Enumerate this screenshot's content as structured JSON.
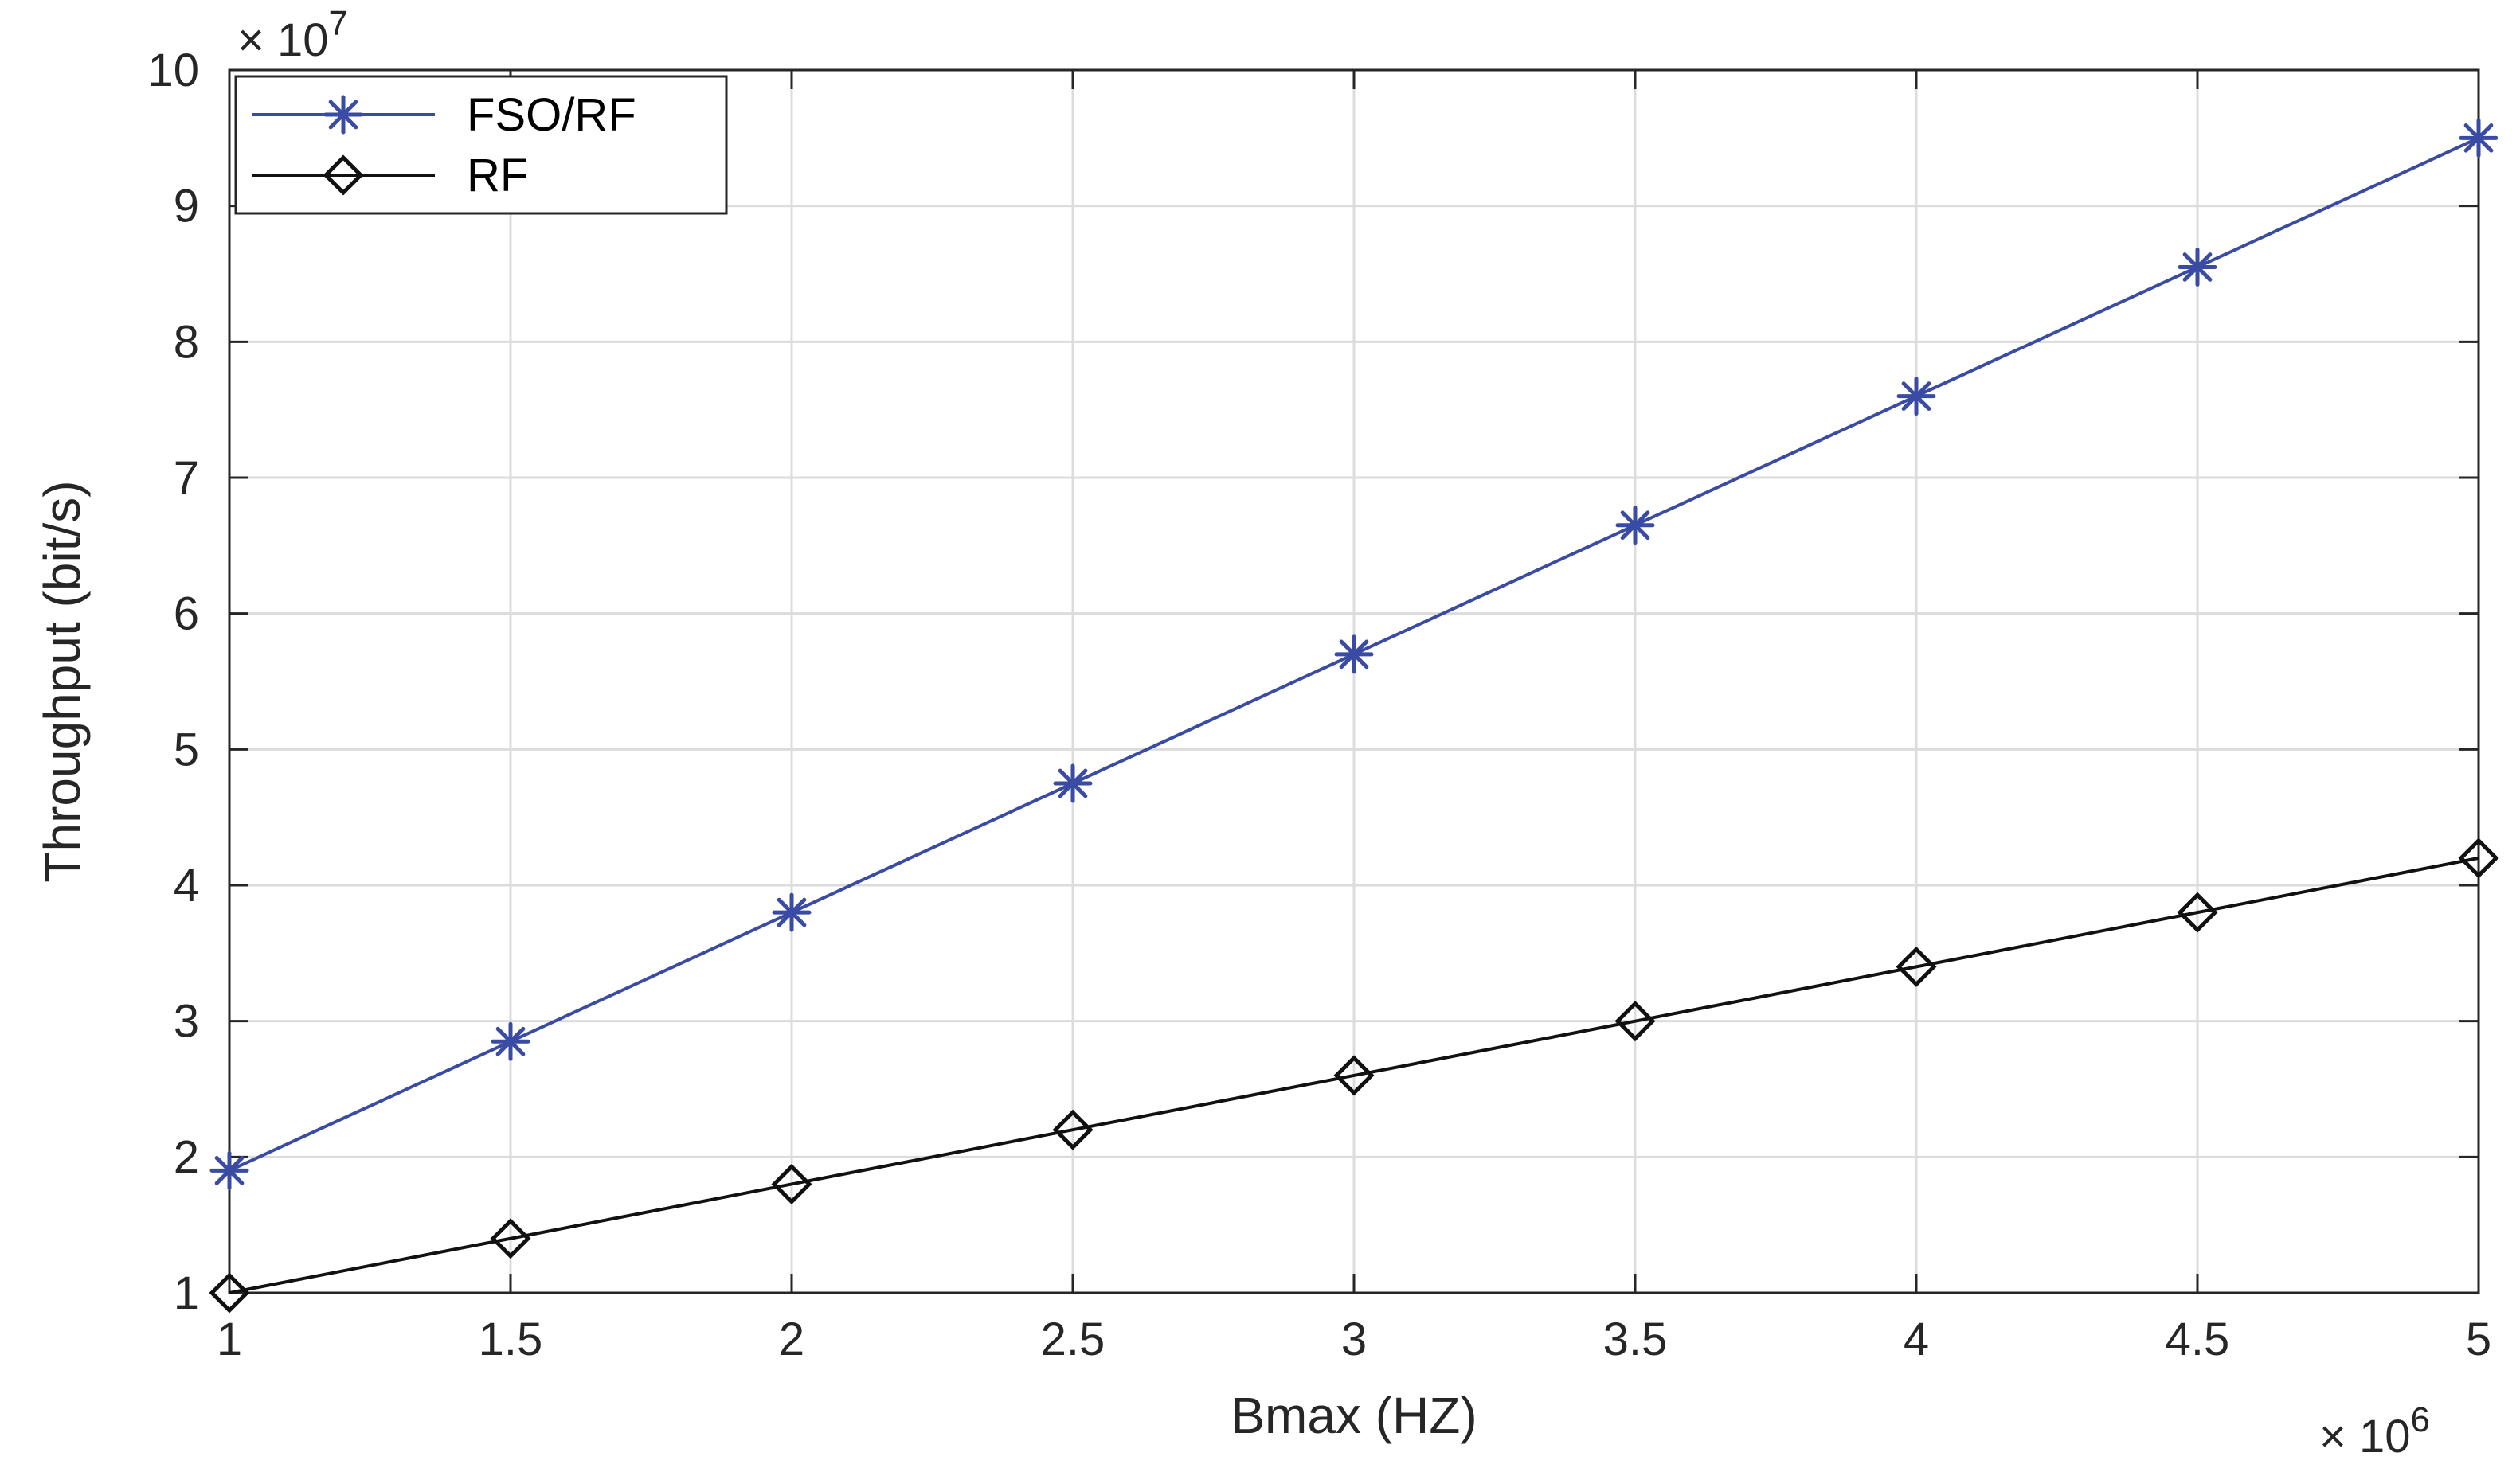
{
  "chart_data": {
    "type": "line",
    "xlabel": "Bmax (HZ)",
    "ylabel": "Throughput (bit/s)",
    "x_exponent": {
      "base": "× 10",
      "power": "6"
    },
    "y_exponent": {
      "base": "× 10",
      "power": "7"
    },
    "xlim": [
      1,
      5
    ],
    "ylim": [
      1,
      10
    ],
    "xticks": [
      1,
      1.5,
      2,
      2.5,
      3,
      3.5,
      4,
      4.5,
      5
    ],
    "xtick_labels": [
      "1",
      "1.5",
      "2",
      "2.5",
      "3",
      "3.5",
      "4",
      "4.5",
      "5"
    ],
    "yticks": [
      1,
      2,
      3,
      4,
      5,
      6,
      7,
      8,
      9,
      10
    ],
    "ytick_labels": [
      "1",
      "2",
      "3",
      "4",
      "5",
      "6",
      "7",
      "8",
      "9",
      "10"
    ],
    "grid": true,
    "legend_position": "top-left",
    "x": [
      1,
      1.5,
      2,
      2.5,
      3,
      3.5,
      4,
      4.5,
      5
    ],
    "series": [
      {
        "name": "FSO/RF",
        "color": "#3a4ba3",
        "marker": "asterisk",
        "values": [
          1.9,
          2.85,
          3.8,
          4.75,
          5.7,
          6.65,
          7.6,
          8.55,
          9.5
        ]
      },
      {
        "name": "RF",
        "color": "#111111",
        "marker": "diamond",
        "values": [
          1.0,
          1.4,
          1.8,
          2.2,
          2.6,
          3.0,
          3.4,
          3.8,
          4.2
        ]
      }
    ]
  }
}
